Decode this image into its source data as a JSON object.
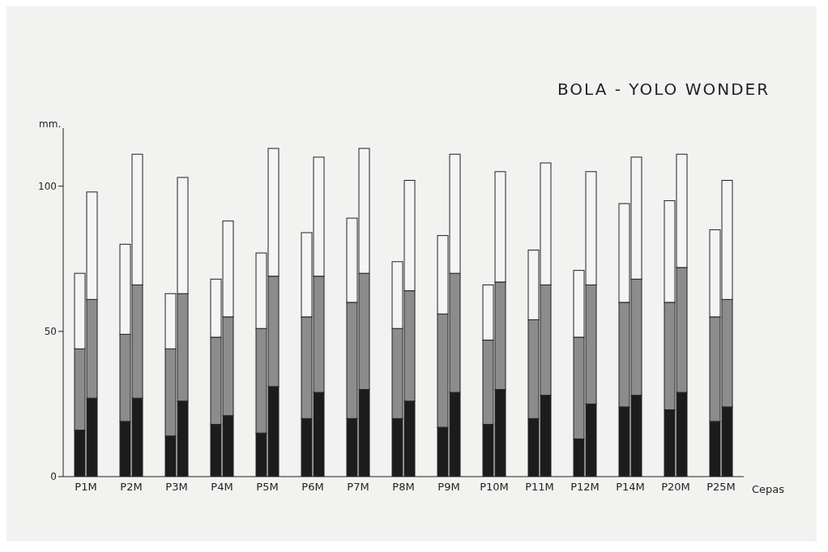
{
  "chart_data": {
    "type": "bar",
    "title": "BOLA - YOLO WONDER",
    "ylabel": "mm.",
    "xlabel": "Cepas",
    "categories": [
      "P1M",
      "P2M",
      "P3M",
      "P4M",
      "P5M",
      "P6M",
      "P7M",
      "P8M",
      "P9M",
      "P10M",
      "P11M",
      "P12M",
      "P14M",
      "P20M",
      "P25M"
    ],
    "series": [
      {
        "color": "#1c1c1c",
        "base": [
          0,
          0,
          0,
          0,
          0,
          0,
          0,
          0,
          0,
          0,
          0,
          0,
          0,
          0,
          0
        ],
        "values": [
          16,
          19,
          14,
          18,
          15,
          20,
          20,
          20,
          17,
          18,
          20,
          13,
          24,
          23,
          19
        ]
      },
      {
        "color": "#8c8c8c",
        "base": [
          16,
          19,
          14,
          18,
          15,
          20,
          20,
          20,
          17,
          18,
          20,
          13,
          24,
          23,
          19
        ],
        "values": [
          28,
          30,
          30,
          30,
          36,
          35,
          40,
          31,
          39,
          29,
          34,
          35,
          36,
          37,
          36
        ]
      },
      {
        "color": "#f4f4f4",
        "base": [
          44,
          49,
          44,
          48,
          51,
          55,
          60,
          51,
          56,
          47,
          54,
          48,
          60,
          60,
          55
        ],
        "values": [
          26,
          31,
          19,
          20,
          26,
          29,
          29,
          23,
          27,
          19,
          24,
          23,
          34,
          35,
          30
        ]
      },
      {
        "color": "#1c1c1c",
        "base": [
          0,
          0,
          0,
          0,
          0,
          0,
          0,
          0,
          0,
          0,
          0,
          0,
          0,
          0,
          0
        ],
        "values": [
          27,
          27,
          26,
          21,
          31,
          29,
          30,
          26,
          29,
          30,
          28,
          25,
          28,
          29,
          24
        ]
      },
      {
        "color": "#8c8c8c",
        "base": [
          27,
          27,
          26,
          21,
          31,
          29,
          30,
          26,
          29,
          30,
          28,
          25,
          28,
          29,
          24
        ],
        "values": [
          34,
          39,
          37,
          34,
          38,
          40,
          40,
          38,
          41,
          37,
          38,
          41,
          40,
          43,
          37
        ]
      },
      {
        "color": "#f4f4f4",
        "base": [
          61,
          66,
          63,
          55,
          69,
          69,
          70,
          64,
          70,
          67,
          66,
          66,
          68,
          72,
          61
        ],
        "values": [
          37,
          45,
          40,
          33,
          44,
          41,
          43,
          38,
          41,
          38,
          42,
          39,
          42,
          39,
          41
        ]
      }
    ],
    "ylim": [
      0,
      120
    ],
    "yticks": [
      0,
      50,
      100
    ]
  }
}
